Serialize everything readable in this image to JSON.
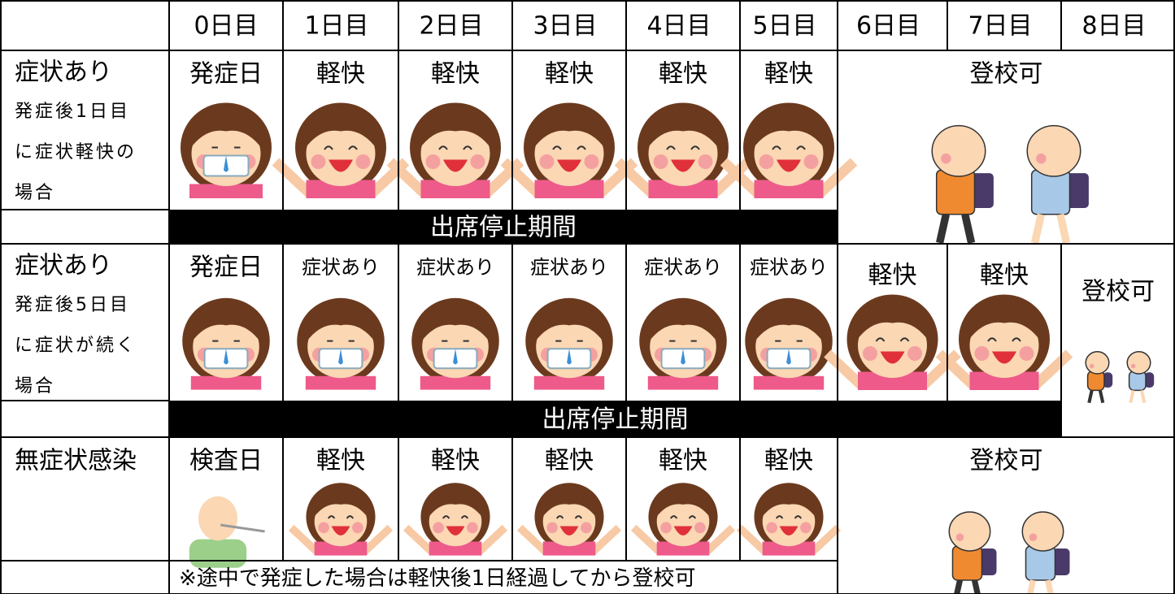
{
  "columns": [
    "0日目",
    "1日目",
    "2日目",
    "3日目",
    "4日目",
    "5日目",
    "6日目",
    "7日目",
    "8日目"
  ],
  "rows": [
    {
      "label": "症状あり",
      "note_lines": [
        "発症後1日目",
        "に症状軽快の",
        "場合"
      ],
      "cells": [
        "発症日",
        "軽快",
        "軽快",
        "軽快",
        "軽快",
        "軽快"
      ],
      "status": "登校可",
      "bar": "出席停止期間"
    },
    {
      "label": "症状あり",
      "note_lines": [
        "発症後5日目",
        "に症状が続く",
        "場合"
      ],
      "cells": [
        "発症日",
        "症状あり",
        "症状あり",
        "症状あり",
        "症状あり",
        "症状あり",
        "軽快",
        "軽快"
      ],
      "status": "登校可",
      "bar": "出席停止期間"
    },
    {
      "label": "無症状感染",
      "cells": [
        "検査日",
        "軽快",
        "軽快",
        "軽快",
        "軽快",
        "軽快"
      ],
      "status": "登校可",
      "footnote": "※途中で発症した場合は軽快後1日経過してから登校可"
    }
  ]
}
